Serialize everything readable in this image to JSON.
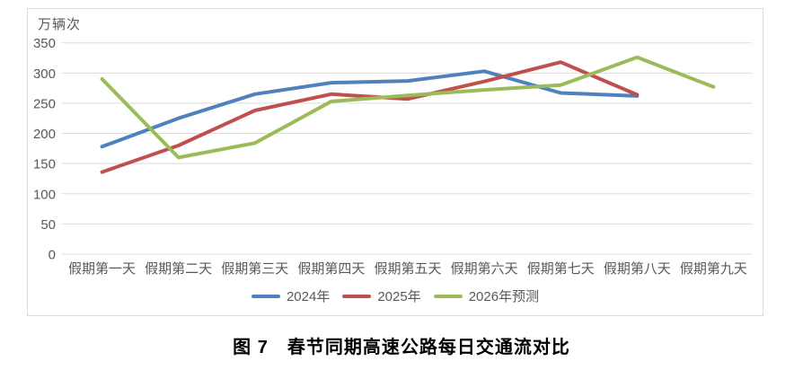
{
  "caption": "图 7　春节同期高速公路每日交通流对比",
  "colors": {
    "grid": "#dcdcdc",
    "axis_text": "#595959",
    "frame_border": "#d9d9d9",
    "background": "#ffffff"
  },
  "chart_data": {
    "type": "line",
    "title": "",
    "unit_label": "万辆次",
    "xlabel": "",
    "ylabel": "万辆次",
    "ylim": [
      0,
      350
    ],
    "y_ticks": [
      0,
      50,
      100,
      150,
      200,
      250,
      300,
      350
    ],
    "grid": "horizontal",
    "legend_position": "bottom",
    "categories": [
      "假期第一天",
      "假期第二天",
      "假期第三天",
      "假期第四天",
      "假期第五天",
      "假期第六天",
      "假期第七天",
      "假期第八天",
      "假期第九天"
    ],
    "series": [
      {
        "name": "2024年",
        "color": "#4f81bd",
        "values": [
          178,
          225,
          265,
          284,
          287,
          303,
          267,
          262,
          null
        ]
      },
      {
        "name": "2025年",
        "color": "#c0504d",
        "values": [
          136,
          180,
          238,
          265,
          257,
          286,
          318,
          264,
          null
        ]
      },
      {
        "name": "2026年预测",
        "color": "#9bbb59",
        "values": [
          290,
          160,
          184,
          253,
          263,
          272,
          280,
          326,
          277
        ]
      }
    ]
  }
}
